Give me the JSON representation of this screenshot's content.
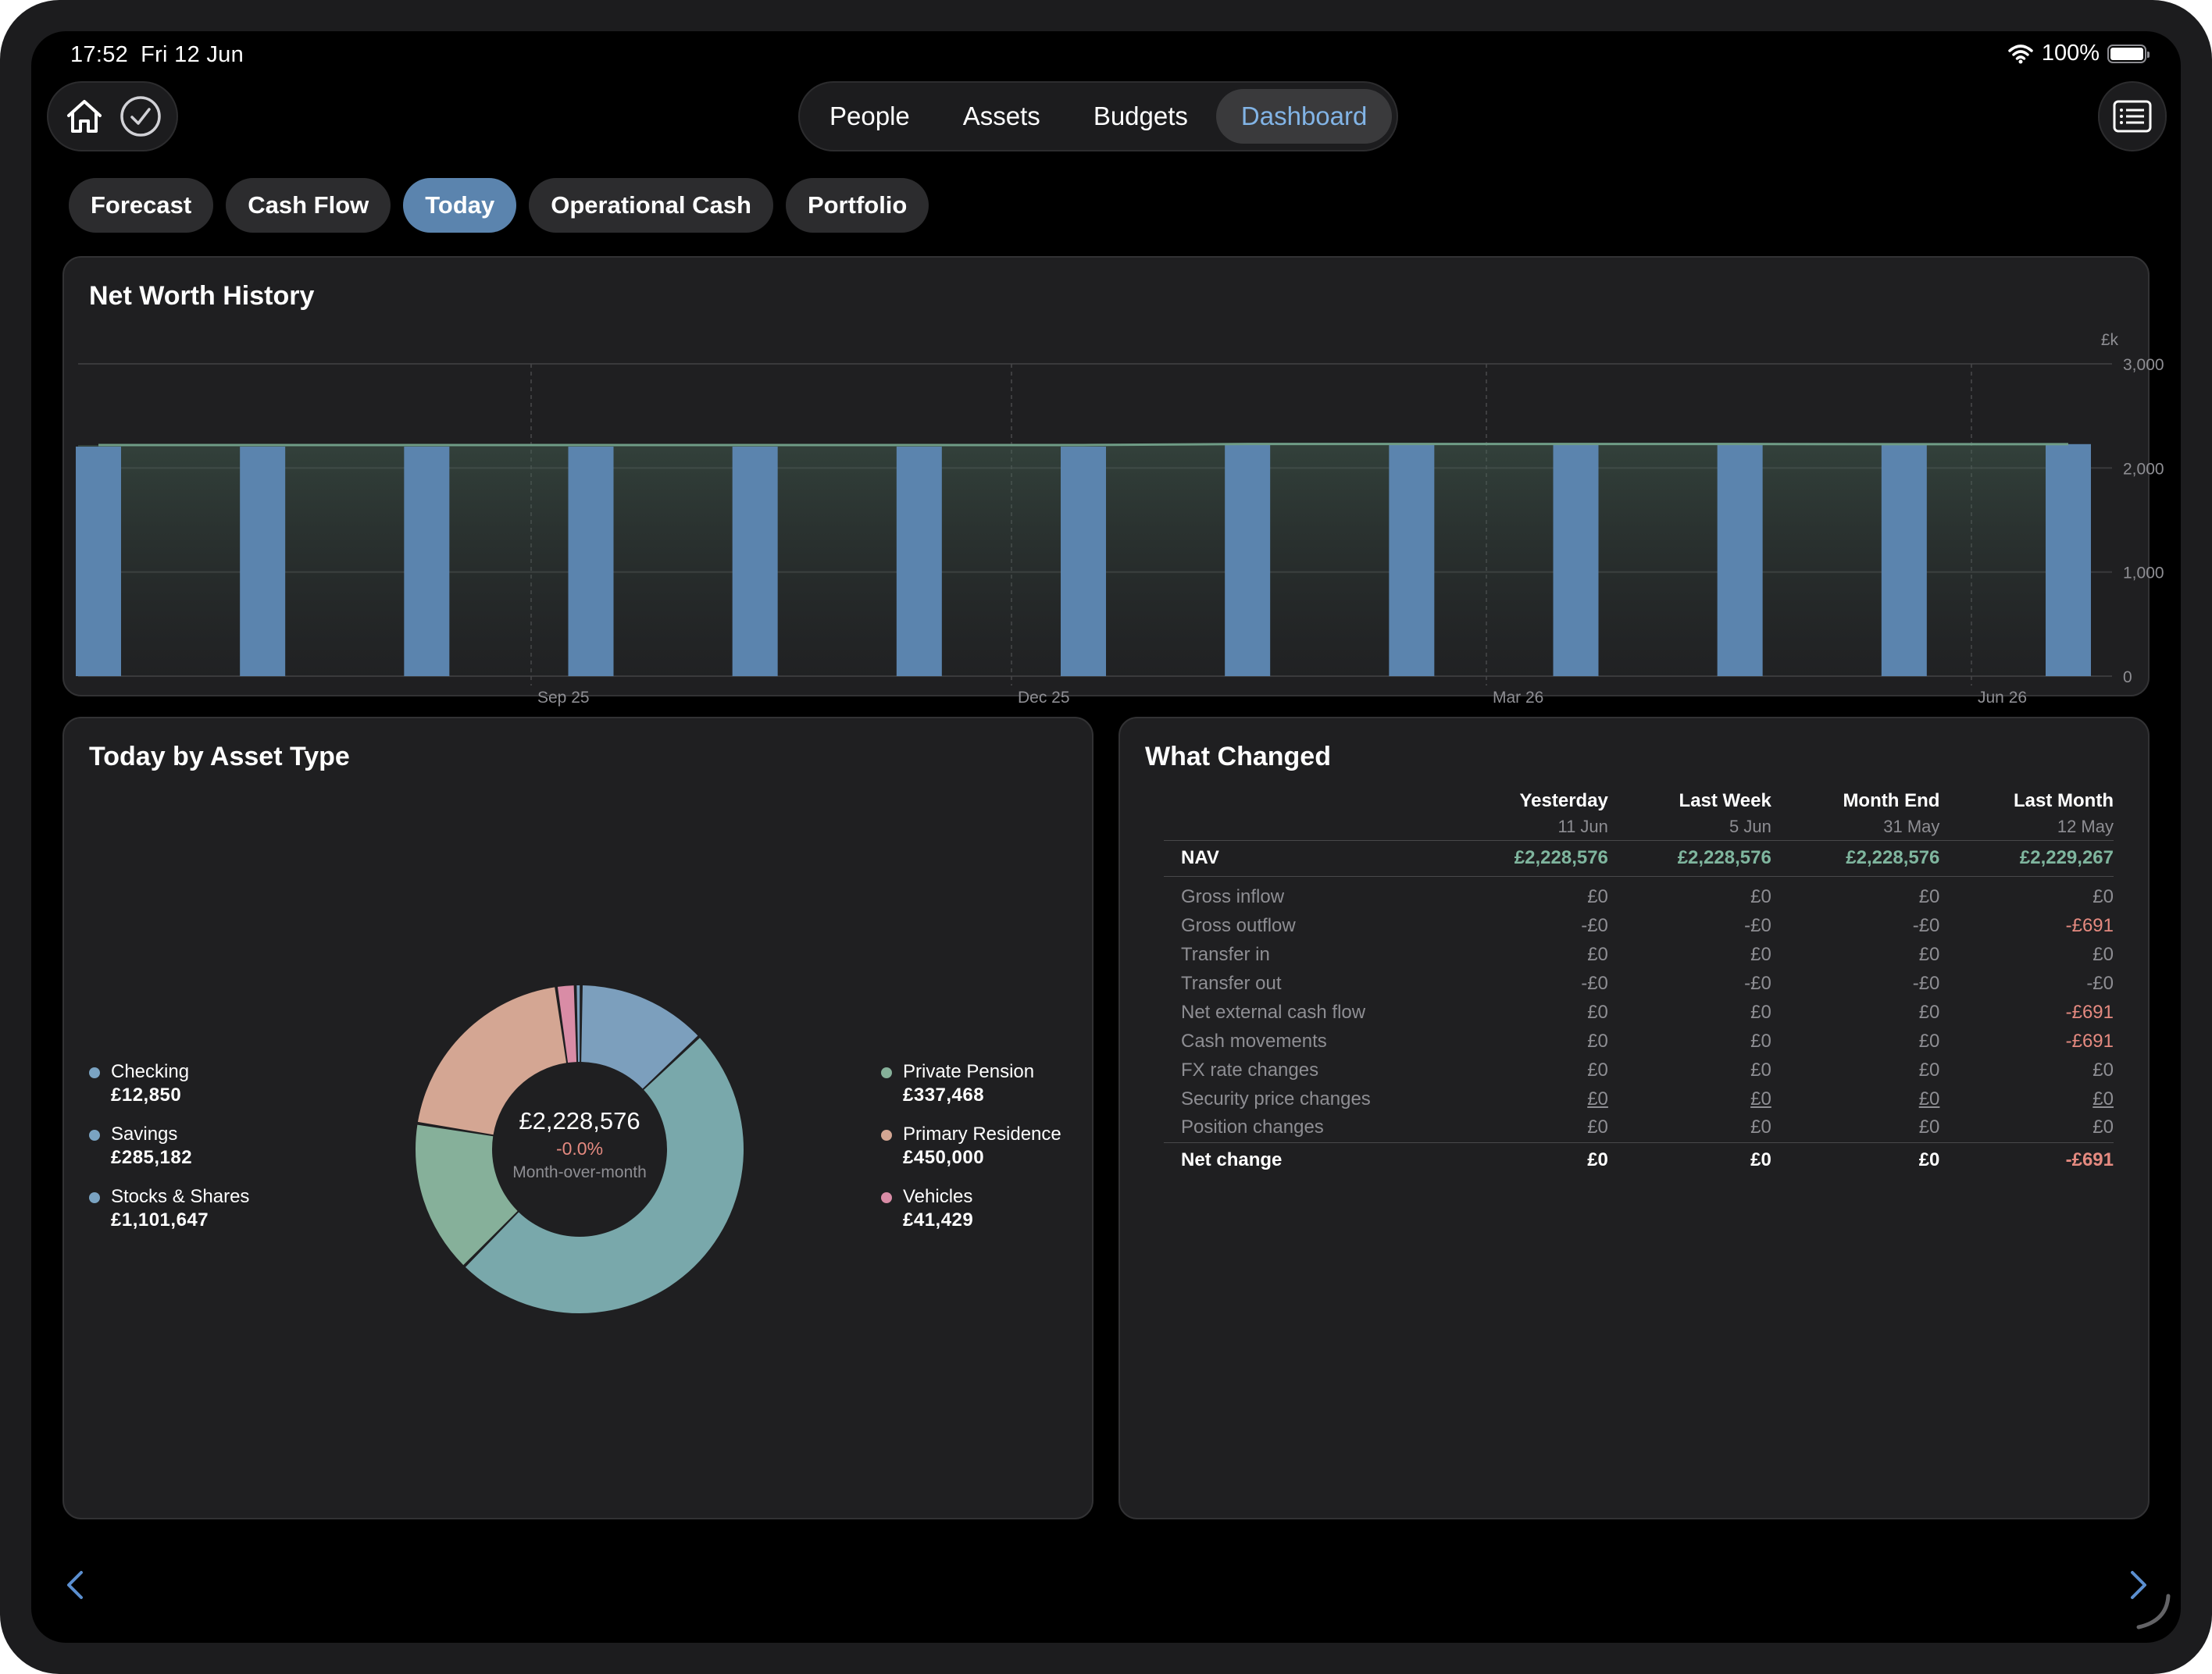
{
  "status_bar": {
    "time": "17:52",
    "date": "Fri 12 Jun",
    "battery": "100%"
  },
  "nav": {
    "segments": [
      {
        "label": "People",
        "active": false
      },
      {
        "label": "Assets",
        "active": false
      },
      {
        "label": "Budgets",
        "active": false
      },
      {
        "label": "Dashboard",
        "active": true
      }
    ]
  },
  "subtabs": [
    {
      "label": "Forecast",
      "active": false
    },
    {
      "label": "Cash Flow",
      "active": false
    },
    {
      "label": "Today",
      "active": true
    },
    {
      "label": "Operational Cash",
      "active": false
    },
    {
      "label": "Portfolio",
      "active": false
    }
  ],
  "net_worth": {
    "title": "Net Worth History",
    "unit": "£k",
    "y_ticks": [
      "3,000",
      "2,000",
      "1,000",
      "0"
    ],
    "x_ticks": [
      "Sep 25",
      "Dec 25",
      "Mar 26",
      "Jun 26"
    ]
  },
  "today_by_asset": {
    "title": "Today by Asset Type",
    "total": "£2,228,576",
    "change": "-0.0%",
    "change_label": "Month-over-month",
    "legend_left": [
      {
        "name": "Checking",
        "value": "£12,850",
        "color": "#7aa3c2"
      },
      {
        "name": "Savings",
        "value": "£285,182",
        "color": "#7aa3c2"
      },
      {
        "name": "Stocks & Shares",
        "value": "£1,101,647",
        "color": "#7aa3c2"
      }
    ],
    "legend_right": [
      {
        "name": "Private Pension",
        "value": "£337,468",
        "color": "#86b09a"
      },
      {
        "name": "Primary Residence",
        "value": "£450,000",
        "color": "#d4a693"
      },
      {
        "name": "Vehicles",
        "value": "£41,429",
        "color": "#d98ca6"
      }
    ]
  },
  "what_changed": {
    "title": "What Changed",
    "columns": [
      {
        "label": "Yesterday",
        "date": "11 Jun"
      },
      {
        "label": "Last Week",
        "date": "5 Jun"
      },
      {
        "label": "Month End",
        "date": "31 May"
      },
      {
        "label": "Last Month",
        "date": "12 May"
      }
    ],
    "nav_row": {
      "label": "NAV",
      "values": [
        "£2,228,576",
        "£2,228,576",
        "£2,228,576",
        "£2,229,267"
      ]
    },
    "rows": [
      {
        "label": "Gross inflow",
        "values": [
          "£0",
          "£0",
          "£0",
          "£0"
        ]
      },
      {
        "label": "Gross outflow",
        "values": [
          "-£0",
          "-£0",
          "-£0",
          "-£691"
        ]
      },
      {
        "label": "Transfer in",
        "values": [
          "£0",
          "£0",
          "£0",
          "£0"
        ]
      },
      {
        "label": "Transfer out",
        "values": [
          "-£0",
          "-£0",
          "-£0",
          "-£0"
        ]
      },
      {
        "label": "Net external cash flow",
        "values": [
          "£0",
          "£0",
          "£0",
          "-£691"
        ]
      },
      {
        "label": "Cash movements",
        "values": [
          "£0",
          "£0",
          "£0",
          "-£691"
        ]
      },
      {
        "label": "FX rate changes",
        "values": [
          "£0",
          "£0",
          "£0",
          "£0"
        ]
      },
      {
        "label": "Security price changes",
        "values": [
          "£0",
          "£0",
          "£0",
          "£0"
        ]
      },
      {
        "label": "Position changes",
        "values": [
          "£0",
          "£0",
          "£0",
          "£0"
        ]
      }
    ],
    "net_row": {
      "label": "Net change",
      "values": [
        "£0",
        "£0",
        "£0",
        "-£691"
      ]
    }
  },
  "chart_data": [
    {
      "type": "bar",
      "title": "Net Worth History",
      "ylabel": "£k",
      "ylim": [
        0,
        3000
      ],
      "x_ticks": [
        "Sep 25",
        "Dec 25",
        "Mar 26",
        "Jun 26"
      ],
      "series": [
        {
          "values": [
            2205,
            2205,
            2205,
            2205,
            2205,
            2205,
            2205,
            2229,
            2229,
            2229,
            2229,
            2229,
            2229
          ]
        }
      ],
      "line_values": [
        2220,
        2220,
        2220,
        2220,
        2220,
        2220,
        2220,
        2230,
        2230,
        2230,
        2230,
        2228,
        2228
      ],
      "grid": true
    },
    {
      "type": "pie",
      "title": "Today by Asset Type",
      "categories": [
        "Checking",
        "Savings",
        "Stocks & Shares",
        "Private Pension",
        "Primary Residence",
        "Vehicles"
      ],
      "values": [
        12850,
        285182,
        1101647,
        337468,
        450000,
        41429
      ],
      "colors": [
        "#7aa3c2",
        "#7aa3c2",
        "#7aa3c2",
        "#86b09a",
        "#d4a693",
        "#d98ca6"
      ]
    }
  ],
  "colors": {
    "accent": "#82b4e6",
    "active_chip": "#5b84ae",
    "bar": "#5b84ae",
    "positive": "#7fb59e",
    "negative": "#e58a80"
  }
}
